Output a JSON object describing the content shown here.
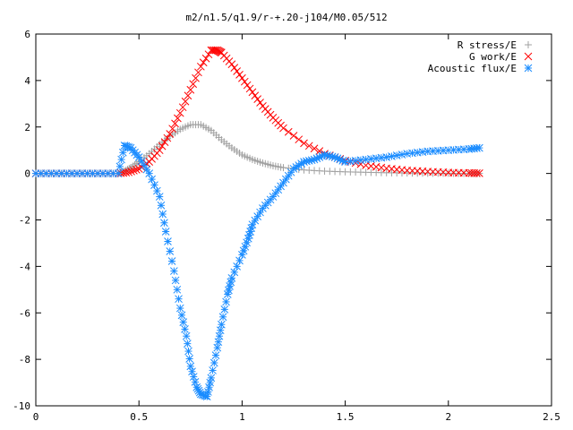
{
  "chart_data": {
    "type": "scatter",
    "title": "m2/n1.5/q1.9/r-+.20-j104/M0.05/512",
    "xlabel": "",
    "ylabel": "",
    "xlim": [
      0,
      2.5
    ],
    "ylim": [
      -10,
      6
    ],
    "xticks": [
      "0",
      "0.5",
      "1",
      "1.5",
      "2",
      "2.5"
    ],
    "yticks": [
      "-10",
      "-8",
      "-6",
      "-4",
      "-2",
      "0",
      "2",
      "4",
      "6"
    ],
    "grid": false,
    "legend_position": "top-right",
    "series": [
      {
        "name": "R stress/E",
        "marker": "plus",
        "color": "#a0a0a0",
        "x": [
          0.0,
          0.1,
          0.2,
          0.3,
          0.4,
          0.43,
          0.46,
          0.5,
          0.55,
          0.6,
          0.65,
          0.7,
          0.75,
          0.8,
          0.85,
          0.9,
          0.95,
          1.0,
          1.05,
          1.1,
          1.15,
          1.2,
          1.3,
          1.4,
          1.5,
          1.6,
          1.7,
          1.8,
          1.9,
          2.0,
          2.1,
          2.15
        ],
        "y": [
          0.0,
          0.0,
          0.0,
          0.0,
          0.0,
          0.1,
          0.25,
          0.5,
          0.85,
          1.25,
          1.6,
          1.9,
          2.1,
          2.1,
          1.85,
          1.45,
          1.1,
          0.8,
          0.6,
          0.45,
          0.33,
          0.25,
          0.15,
          0.1,
          0.07,
          0.05,
          0.03,
          0.02,
          0.01,
          0.01,
          0.0,
          0.0
        ]
      },
      {
        "name": "G work/E",
        "marker": "cross",
        "color": "#ff0000",
        "x": [
          0.0,
          0.1,
          0.2,
          0.3,
          0.4,
          0.45,
          0.5,
          0.55,
          0.6,
          0.65,
          0.7,
          0.75,
          0.8,
          0.85,
          0.88,
          0.9,
          0.95,
          1.0,
          1.05,
          1.1,
          1.15,
          1.2,
          1.3,
          1.4,
          1.5,
          1.6,
          1.7,
          1.8,
          1.9,
          2.0,
          2.1,
          2.15
        ],
        "y": [
          0.0,
          0.0,
          0.0,
          0.0,
          0.0,
          0.05,
          0.2,
          0.5,
          1.0,
          1.7,
          2.6,
          3.6,
          4.6,
          5.3,
          5.3,
          5.2,
          4.7,
          4.1,
          3.5,
          2.9,
          2.4,
          1.95,
          1.3,
          0.85,
          0.55,
          0.35,
          0.22,
          0.13,
          0.08,
          0.04,
          0.02,
          0.01
        ]
      },
      {
        "name": "Acoustic flux/E",
        "marker": "star",
        "color": "#1a8cff",
        "x": [
          0.0,
          0.1,
          0.2,
          0.3,
          0.4,
          0.43,
          0.46,
          0.5,
          0.55,
          0.6,
          0.63,
          0.67,
          0.7,
          0.73,
          0.75,
          0.78,
          0.8,
          0.83,
          0.85,
          0.88,
          0.9,
          0.93,
          0.95,
          1.0,
          1.03,
          1.05,
          1.1,
          1.15,
          1.2,
          1.25,
          1.3,
          1.35,
          1.4,
          1.45,
          1.5,
          1.6,
          1.7,
          1.8,
          1.9,
          2.0,
          2.1,
          2.15
        ],
        "y": [
          0.0,
          0.0,
          0.0,
          0.0,
          0.0,
          1.2,
          1.1,
          0.7,
          0.0,
          -1.0,
          -2.5,
          -4.2,
          -5.8,
          -7.0,
          -8.3,
          -9.2,
          -9.5,
          -9.6,
          -8.8,
          -7.5,
          -6.5,
          -5.2,
          -4.5,
          -3.5,
          -2.8,
          -2.2,
          -1.5,
          -1.0,
          -0.4,
          0.2,
          0.5,
          0.6,
          0.8,
          0.7,
          0.5,
          0.6,
          0.7,
          0.85,
          0.95,
          1.0,
          1.05,
          1.1
        ]
      }
    ]
  }
}
